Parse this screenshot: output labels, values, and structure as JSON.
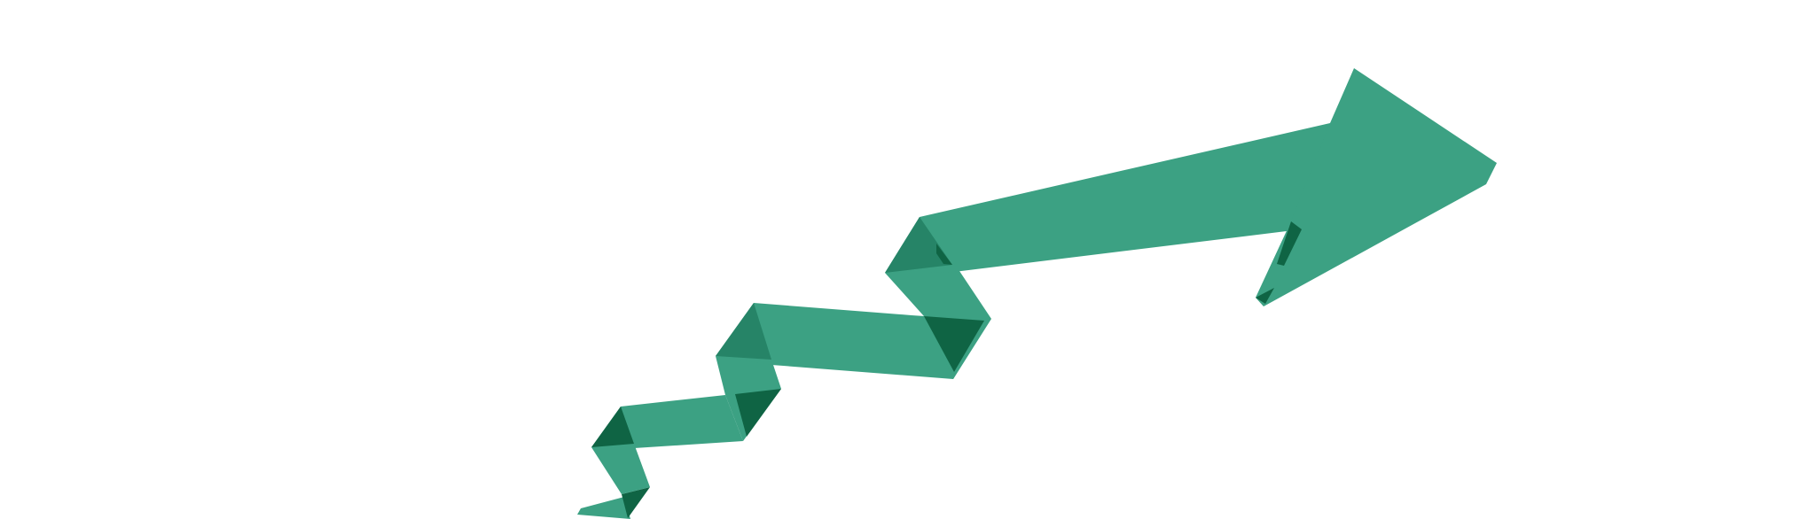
{
  "colors": {
    "background": "#ffffff",
    "ribbon": "#3ca183",
    "ribbon_fold_mid": "#268467",
    "ribbon_fold_dark": "#0f6444"
  },
  "graphic": {
    "icon": "zigzag-growth-arrow-icon"
  }
}
